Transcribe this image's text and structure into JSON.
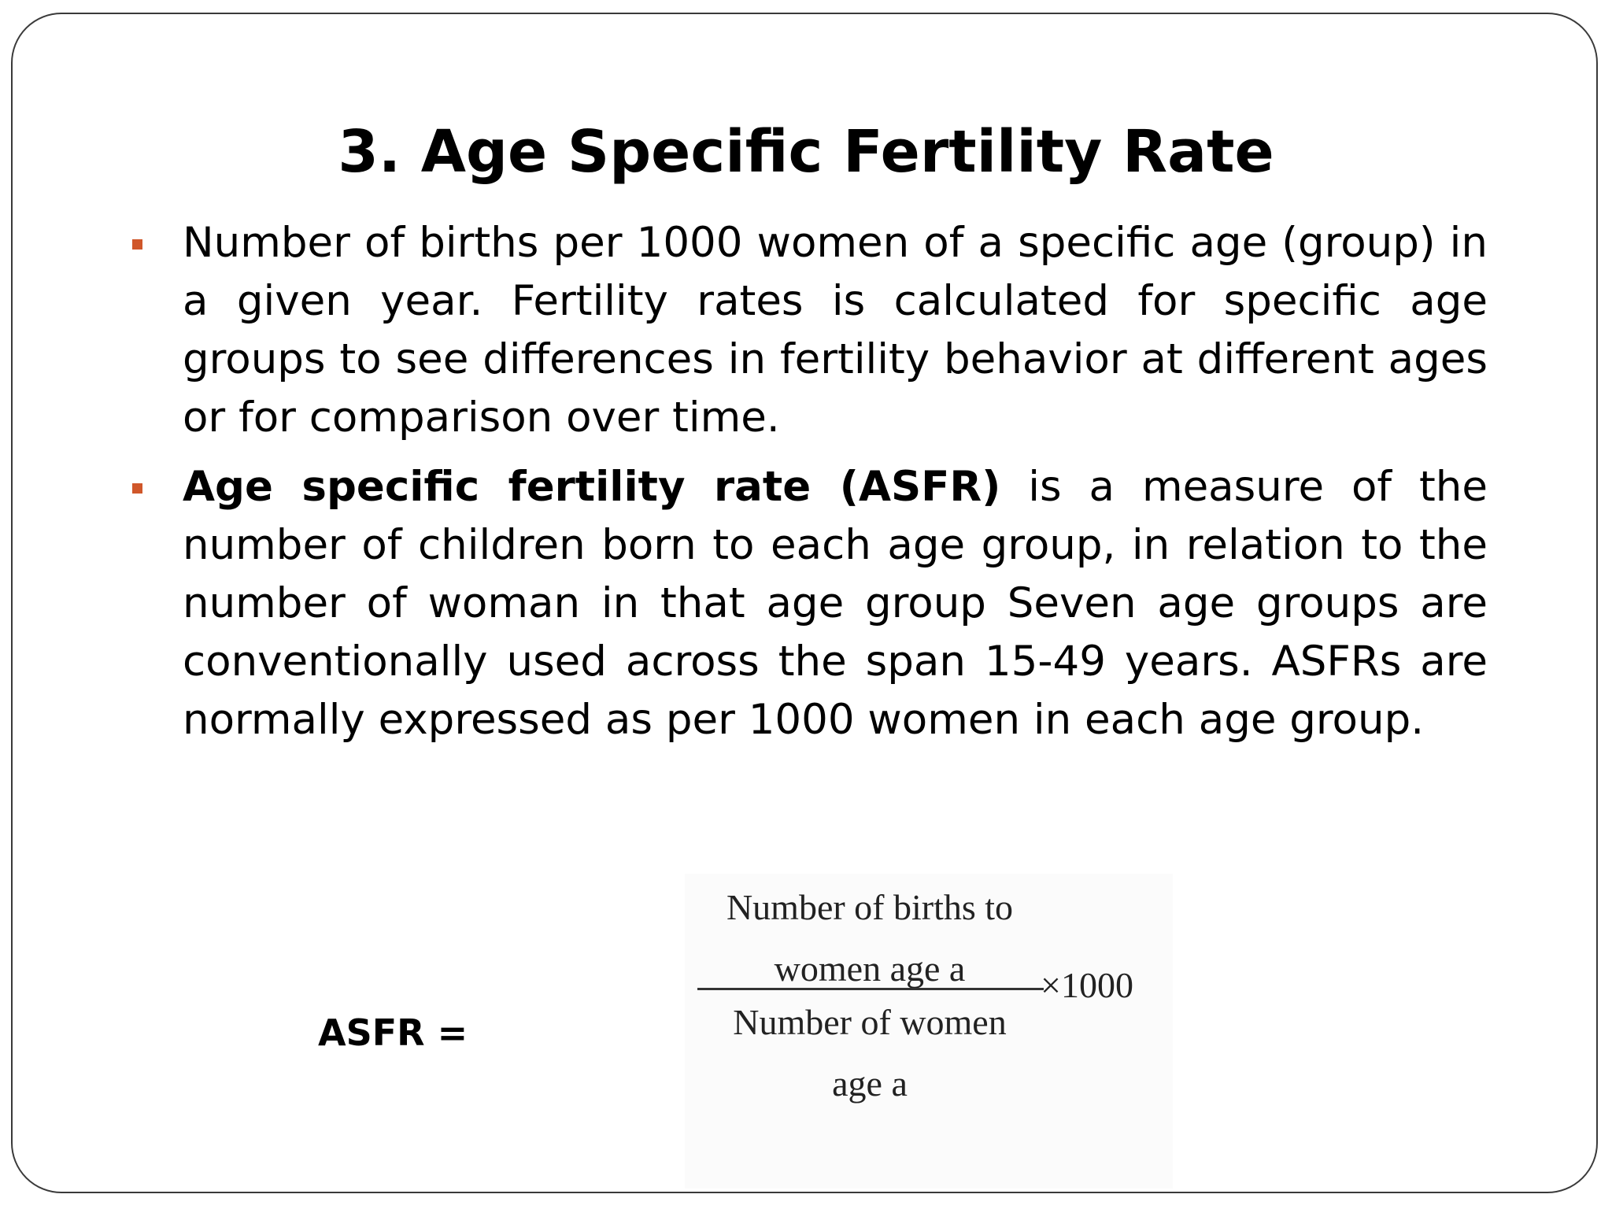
{
  "slide": {
    "title": "3.  Age Specific Fertility Rate",
    "bullets": [
      {
        "bold": "",
        "text": "Number of births per 1000 women of a specific age (group) in a given year. Fertility rates is calculated for specific age groups to see differences in fertility behavior at different ages or for comparison over time."
      },
      {
        "bold": "Age specific fertility rate (ASFR)",
        "text": " is a measure of the number of children born to each age group, in relation to the number of woman in that age group Seven age groups are conventionally used across the span 15-49 years. ASFRs are normally expressed as per 1000 women in each age group."
      }
    ],
    "formula": {
      "label": "ASFR =",
      "numerator_line1": "Number of births to",
      "numerator_line2": "women age a",
      "denominator_line1": "Number of women",
      "denominator_line2": "age a",
      "multiplier": "×1000"
    }
  },
  "colors": {
    "bullet_marker": "#d0572a",
    "frame_border": "#3a3a3a",
    "text": "#000000"
  }
}
